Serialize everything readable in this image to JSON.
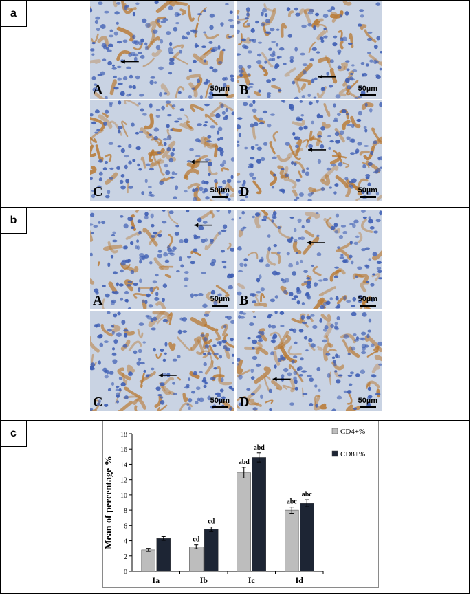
{
  "figure": {
    "panels": [
      {
        "tag": "a",
        "images": [
          {
            "letter": "A",
            "scale": "50µm"
          },
          {
            "letter": "B",
            "scale": "50µm"
          },
          {
            "letter": "C",
            "scale": "50µm"
          },
          {
            "letter": "D",
            "scale": "50µm"
          }
        ]
      },
      {
        "tag": "b",
        "images": [
          {
            "letter": "A",
            "scale": "50µm"
          },
          {
            "letter": "B",
            "scale": "50µm"
          },
          {
            "letter": "C",
            "scale": "50µm"
          },
          {
            "letter": "D",
            "scale": "50µm"
          }
        ]
      },
      {
        "tag": "c"
      }
    ]
  },
  "colors": {
    "tissue_bg": "#c9d3e3",
    "stain_brown": "#b8772f",
    "nucleus_blue": "#3f5fb4",
    "bar_cd4": "#bdbdbd",
    "bar_cd8": "#1d2534"
  },
  "chart_data": {
    "type": "bar",
    "categories": [
      "Ia",
      "Ib",
      "Ic",
      "Id"
    ],
    "series": [
      {
        "name": "CD4+%",
        "values": [
          2.8,
          3.2,
          12.9,
          8.0
        ],
        "errors": [
          0.2,
          0.25,
          0.7,
          0.4
        ],
        "labels": [
          "",
          "cd",
          "abd",
          "abc"
        ],
        "color": "#bdbdbd"
      },
      {
        "name": "CD8+%",
        "values": [
          4.3,
          5.5,
          14.9,
          8.9
        ],
        "errors": [
          0.25,
          0.3,
          0.6,
          0.45
        ],
        "labels": [
          "",
          "cd",
          "abd",
          "abc"
        ],
        "color": "#1d2534"
      }
    ],
    "ylabel": "Mean of percentage %",
    "xlabel": "",
    "ylim": [
      0,
      18
    ],
    "yticks": [
      0,
      2,
      4,
      6,
      8,
      10,
      12,
      14,
      16,
      18
    ],
    "grid": false,
    "legend": "top-right"
  }
}
